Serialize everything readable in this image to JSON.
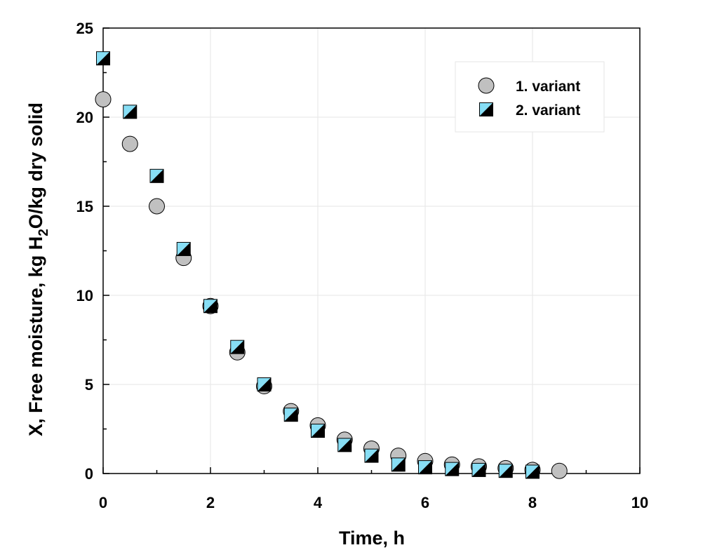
{
  "chart_data": {
    "type": "scatter",
    "xlabel": "Time, h",
    "ylabel_parts": {
      "before_sub": "X, Free moisture, kg H",
      "sub": "2",
      "after_sub": "O/kg dry solid"
    },
    "xlim": [
      0,
      10
    ],
    "ylim": [
      0,
      25
    ],
    "xticks": [
      0,
      2,
      4,
      6,
      8,
      10
    ],
    "yticks": [
      0,
      5,
      10,
      15,
      20,
      25
    ],
    "grid": true,
    "legend_position": "top-right",
    "series": [
      {
        "name": "1. variant",
        "marker": "circle",
        "color": "#c0c0c0",
        "x": [
          0,
          0.5,
          1,
          1.5,
          2,
          2.5,
          3,
          3.5,
          4,
          4.5,
          5,
          5.5,
          6,
          6.5,
          7,
          7.5,
          8,
          8.5
        ],
        "y": [
          21.0,
          18.5,
          15.0,
          12.1,
          9.4,
          6.8,
          4.9,
          3.5,
          2.7,
          1.9,
          1.4,
          1.0,
          0.7,
          0.5,
          0.4,
          0.3,
          0.2,
          0.15
        ]
      },
      {
        "name": "2. variant",
        "marker": "square-diagonal",
        "color": "#87def5",
        "color2": "#000000",
        "x": [
          0,
          0.5,
          1,
          1.5,
          2,
          2.5,
          3,
          3.5,
          4,
          4.5,
          5,
          5.5,
          6,
          6.5,
          7,
          7.5,
          8
        ],
        "y": [
          23.3,
          20.3,
          16.7,
          12.6,
          9.4,
          7.1,
          5.0,
          3.3,
          2.4,
          1.6,
          1.0,
          0.5,
          0.35,
          0.25,
          0.2,
          0.15,
          0.1
        ]
      }
    ]
  }
}
